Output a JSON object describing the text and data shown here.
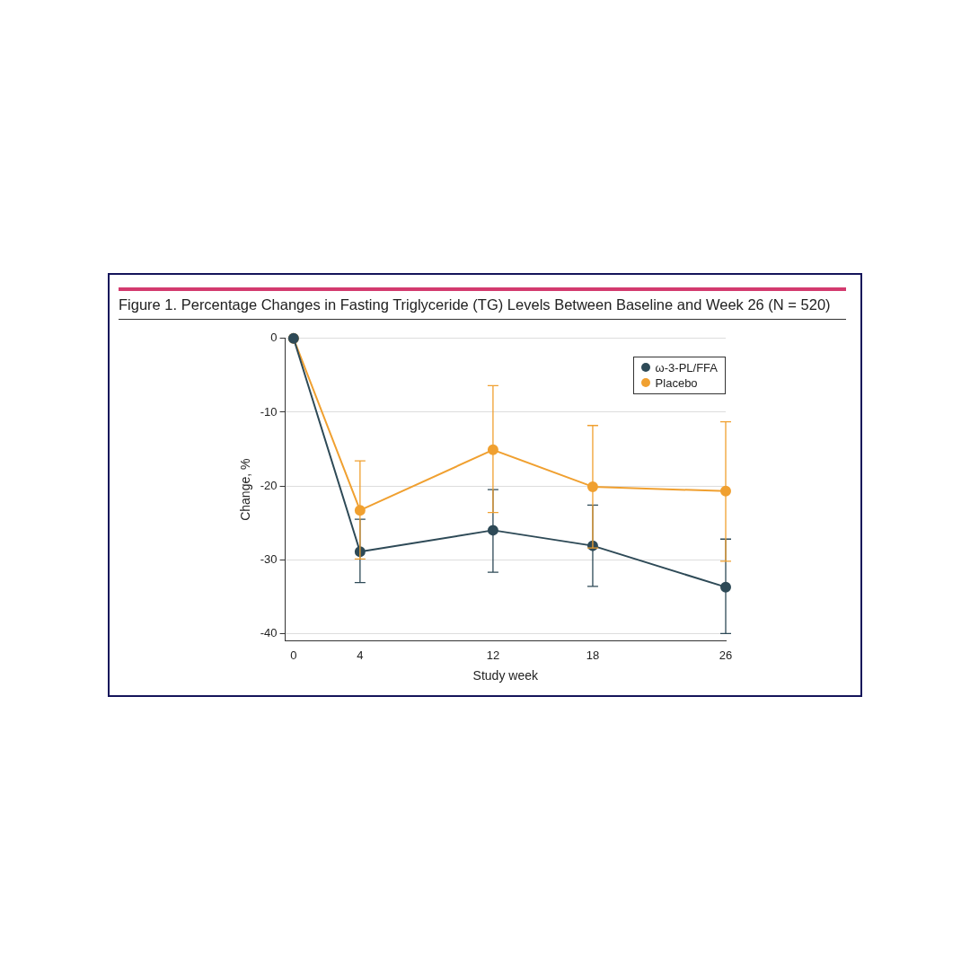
{
  "chart_data": {
    "type": "line",
    "title": "Figure 1. Percentage Changes in Fasting Triglyceride (TG) Levels Between Baseline and Week 26 (N = 520)",
    "xlabel": "Study week",
    "ylabel": "Change, %",
    "x": [
      0,
      4,
      12,
      18,
      26
    ],
    "series": [
      {
        "name": "ω-3-PL/FFA",
        "color": "#2e4a57",
        "values": [
          0,
          -28.9,
          -26.0,
          -28.1,
          -33.7
        ],
        "errors": [
          null,
          [
            -33.1,
            -24.5
          ],
          [
            -31.7,
            -20.5
          ],
          [
            -33.6,
            -22.6
          ],
          [
            -40.0,
            -27.2
          ]
        ]
      },
      {
        "name": "Placebo",
        "color": "#f0a030",
        "values": [
          0,
          -23.3,
          -15.1,
          -20.1,
          -20.7
        ],
        "errors": [
          null,
          [
            -29.9,
            -16.6
          ],
          [
            -23.6,
            -6.4
          ],
          [
            -28.4,
            -11.8
          ],
          [
            -30.2,
            -11.3
          ]
        ]
      }
    ],
    "xlim": [
      -0.5,
      26
    ],
    "xticks": [
      0,
      4,
      12,
      18,
      26
    ],
    "ylim": [
      -41,
      0
    ],
    "yticks": [
      -40,
      -30,
      -20,
      -10,
      0
    ],
    "grid": "y",
    "legend": "top right",
    "marker": "circle",
    "line_style": "solid"
  }
}
